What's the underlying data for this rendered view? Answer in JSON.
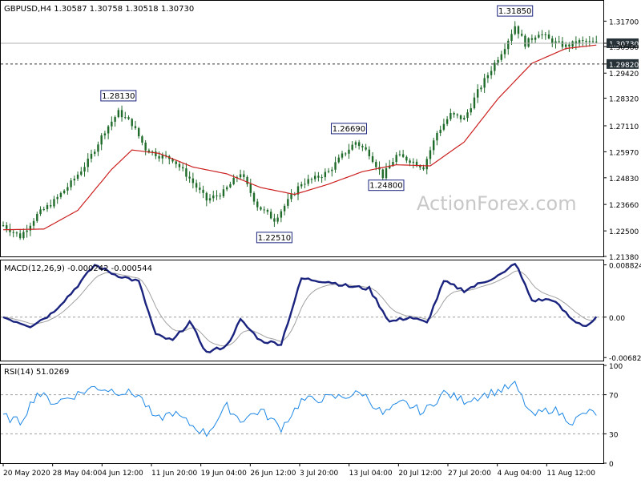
{
  "header": {
    "main": "GBPUSD,H4  1.30587 1.30758 1.30518 1.30730",
    "macd": "MACD(12,26,9) -0.000242 -0.000544",
    "rsi": "RSI(14) 51.0269"
  },
  "watermark": "ActionForex.com",
  "colors": {
    "candle": "#1f6b2a",
    "ma": "#cc2020",
    "macd_line": "#1a237e",
    "macd_signal": "#a0a0a0",
    "rsi_line": "#1e88e5",
    "price_tag_bg": "#263238",
    "annotation_border": "#1a237e"
  },
  "chart_data": [
    {
      "type": "candlestick",
      "name": "price",
      "ylim": [
        1.2138,
        1.3217
      ],
      "y_ticks": [
        "1.31700",
        "1.30730",
        "1.30580",
        "1.29820",
        "1.29420",
        "1.28320",
        "1.27110",
        "1.25970",
        "1.24830",
        "1.23660",
        "1.22500",
        "1.21380"
      ],
      "current_price": "1.30730",
      "support_level": "1.29820",
      "annotations": [
        {
          "label": "1.28130",
          "bar": 34
        },
        {
          "label": "1.22510",
          "bar": 80
        },
        {
          "label": "1.26690",
          "bar": 102
        },
        {
          "label": "1.24800",
          "bar": 113
        },
        {
          "label": "1.31850",
          "bar": 151
        }
      ],
      "close_anchors": [
        [
          0,
          1.2275
        ],
        [
          5,
          1.2225
        ],
        [
          10,
          1.232
        ],
        [
          15,
          1.238
        ],
        [
          20,
          1.246
        ],
        [
          25,
          1.2555
        ],
        [
          30,
          1.269
        ],
        [
          34,
          1.277
        ],
        [
          38,
          1.272
        ],
        [
          42,
          1.261
        ],
        [
          46,
          1.258
        ],
        [
          50,
          1.2565
        ],
        [
          55,
          1.248
        ],
        [
          60,
          1.2385
        ],
        [
          65,
          1.242
        ],
        [
          70,
          1.2505
        ],
        [
          75,
          1.236
        ],
        [
          80,
          1.23
        ],
        [
          84,
          1.238
        ],
        [
          88,
          1.246
        ],
        [
          92,
          1.248
        ],
        [
          96,
          1.251
        ],
        [
          100,
          1.258
        ],
        [
          104,
          1.264
        ],
        [
          108,
          1.259
        ],
        [
          112,
          1.249
        ],
        [
          116,
          1.258
        ],
        [
          120,
          1.256
        ],
        [
          124,
          1.253
        ],
        [
          128,
          1.268
        ],
        [
          132,
          1.276
        ],
        [
          136,
          1.274
        ],
        [
          140,
          1.286
        ],
        [
          144,
          1.296
        ],
        [
          148,
          1.306
        ],
        [
          151,
          1.315
        ],
        [
          154,
          1.307
        ],
        [
          158,
          1.312
        ],
        [
          162,
          1.308
        ],
        [
          166,
          1.306
        ],
        [
          170,
          1.308
        ],
        [
          175,
          1.3073
        ]
      ],
      "ma_anchors": [
        [
          0,
          1.2255
        ],
        [
          12,
          1.2258
        ],
        [
          22,
          1.234
        ],
        [
          32,
          1.252
        ],
        [
          38,
          1.2605
        ],
        [
          46,
          1.259
        ],
        [
          56,
          1.253
        ],
        [
          66,
          1.25
        ],
        [
          76,
          1.244
        ],
        [
          86,
          1.241
        ],
        [
          96,
          1.2455
        ],
        [
          106,
          1.251
        ],
        [
          116,
          1.254
        ],
        [
          126,
          1.2535
        ],
        [
          136,
          1.264
        ],
        [
          146,
          1.283
        ],
        [
          156,
          1.2985
        ],
        [
          166,
          1.305
        ],
        [
          175,
          1.3065
        ]
      ]
    },
    {
      "type": "line",
      "name": "MACD(12,26,9)",
      "ylim": [
        -0.0072,
        0.0093
      ],
      "y_ticks": [
        "0.008824",
        "0.00",
        "-0.006825"
      ],
      "values": [
        -0.000242,
        -0.000544
      ],
      "macd_anchors": [
        [
          0,
          0.0
        ],
        [
          8,
          -0.0015
        ],
        [
          14,
          0.0005
        ],
        [
          20,
          0.004
        ],
        [
          27,
          0.0088
        ],
        [
          33,
          0.0072
        ],
        [
          40,
          0.006
        ],
        [
          45,
          -0.003
        ],
        [
          50,
          -0.004
        ],
        [
          55,
          -0.0008
        ],
        [
          60,
          -0.006
        ],
        [
          66,
          -0.0048
        ],
        [
          70,
          -0.0005
        ],
        [
          76,
          -0.004
        ],
        [
          82,
          -0.0045
        ],
        [
          88,
          0.0065
        ],
        [
          96,
          0.006
        ],
        [
          102,
          0.0052
        ],
        [
          108,
          0.0048
        ],
        [
          114,
          -0.0008
        ],
        [
          120,
          0.0
        ],
        [
          125,
          -0.001
        ],
        [
          130,
          0.006
        ],
        [
          136,
          0.0045
        ],
        [
          142,
          0.006
        ],
        [
          148,
          0.0075
        ],
        [
          151,
          0.0092
        ],
        [
          156,
          0.0028
        ],
        [
          162,
          0.003
        ],
        [
          168,
          -0.0005
        ],
        [
          172,
          -0.0015
        ],
        [
          175,
          -0.0002
        ]
      ]
    },
    {
      "type": "line",
      "name": "RSI(14)",
      "ylim": [
        0,
        100
      ],
      "y_ticks": [
        "100",
        "70",
        "30",
        "0"
      ],
      "value": 51.0269,
      "rsi_anchors": [
        [
          0,
          48
        ],
        [
          5,
          42
        ],
        [
          10,
          72
        ],
        [
          15,
          62
        ],
        [
          20,
          68
        ],
        [
          27,
          78
        ],
        [
          33,
          74
        ],
        [
          40,
          70
        ],
        [
          45,
          44
        ],
        [
          50,
          52
        ],
        [
          55,
          40
        ],
        [
          60,
          30
        ],
        [
          66,
          58
        ],
        [
          70,
          44
        ],
        [
          76,
          54
        ],
        [
          82,
          36
        ],
        [
          88,
          64
        ],
        [
          94,
          66
        ],
        [
          100,
          68
        ],
        [
          106,
          72
        ],
        [
          112,
          50
        ],
        [
          118,
          62
        ],
        [
          124,
          52
        ],
        [
          130,
          72
        ],
        [
          136,
          64
        ],
        [
          142,
          70
        ],
        [
          148,
          76
        ],
        [
          151,
          80
        ],
        [
          156,
          48
        ],
        [
          162,
          56
        ],
        [
          168,
          42
        ],
        [
          172,
          52
        ],
        [
          175,
          51
        ]
      ]
    }
  ],
  "x_labels": [
    "20 May 2020",
    "28 May 04:00",
    "4 Jun 12:00",
    "11 Jun 20:00",
    "19 Jun 04:00",
    "26 Jun 12:00",
    "3 Jul 20:00",
    "13 Jul 04:00",
    "20 Jul 12:00",
    "27 Jul 20:00",
    "4 Aug 04:00",
    "11 Aug 12:00"
  ]
}
